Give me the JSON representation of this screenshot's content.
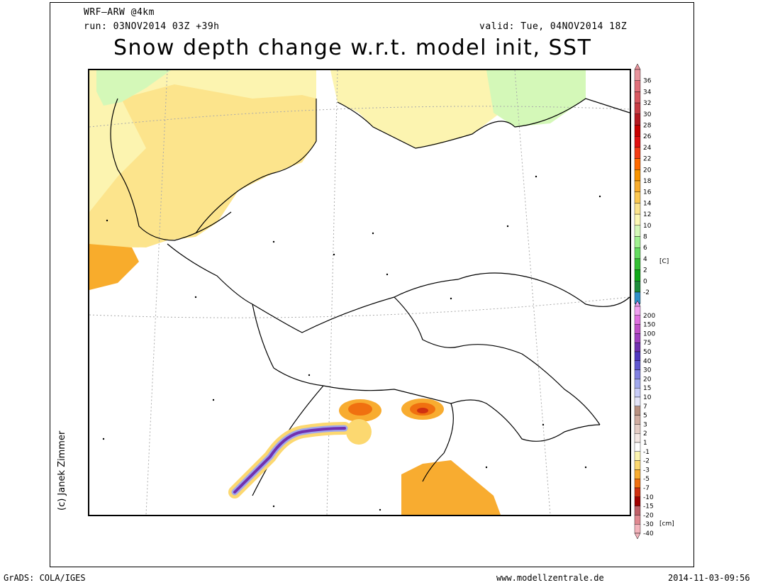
{
  "header": {
    "model": "WRF–ARW @4km",
    "run": "run: 03NOV2014 03Z +39h",
    "valid": "valid: Tue, 04NOV2014 18Z",
    "title": "Snow depth change w.r.t. model init, SST"
  },
  "credit": "(c) Janek Zimmer",
  "footer": {
    "left": "GrADS: COLA/IGES",
    "center": "www.modellzentrale.de",
    "right": "2014-11-03-09:56"
  },
  "sst_scale": {
    "unit": "[C]",
    "ticks": [
      "36",
      "34",
      "32",
      "30",
      "28",
      "26",
      "24",
      "22",
      "20",
      "18",
      "16",
      "14",
      "12",
      "10",
      "8",
      "6",
      "4",
      "2",
      "0",
      "-2"
    ],
    "colors": [
      "#e8949c",
      "#e0707a",
      "#d85860",
      "#c83c44",
      "#b41820",
      "#c80000",
      "#e01010",
      "#f43c14",
      "#ff6a00",
      "#f89400",
      "#f8ac2c",
      "#fcc850",
      "#fce48c",
      "#fcf8b4",
      "#d4f8b8",
      "#a0f090",
      "#64dc60",
      "#34c034",
      "#10a818",
      "#1e8c3c",
      "#3090c8"
    ]
  },
  "snow_scale": {
    "unit": "[cm]",
    "ticks": [
      "200",
      "150",
      "100",
      "75",
      "50",
      "40",
      "30",
      "20",
      "15",
      "10",
      "7",
      "5",
      "3",
      "2",
      "1",
      "-1",
      "-2",
      "-3",
      "-5",
      "-7",
      "-10",
      "-15",
      "-20",
      "-30",
      "-40"
    ],
    "colors": [
      "#f0a0f0",
      "#e070e0",
      "#c050c8",
      "#a040c0",
      "#7030b0",
      "#5038c0",
      "#6058d0",
      "#8080e0",
      "#a0a8ec",
      "#c8ccf8",
      "#e4e4f8",
      "#b89080",
      "#d0aca0",
      "#e4ccc4",
      "#f4e8e4",
      "#ffffff",
      "#fcf4b0",
      "#fcd870",
      "#f8ac30",
      "#f07010",
      "#d03010",
      "#a00000",
      "#c06068",
      "#e08890",
      "#f4b4bc"
    ]
  }
}
